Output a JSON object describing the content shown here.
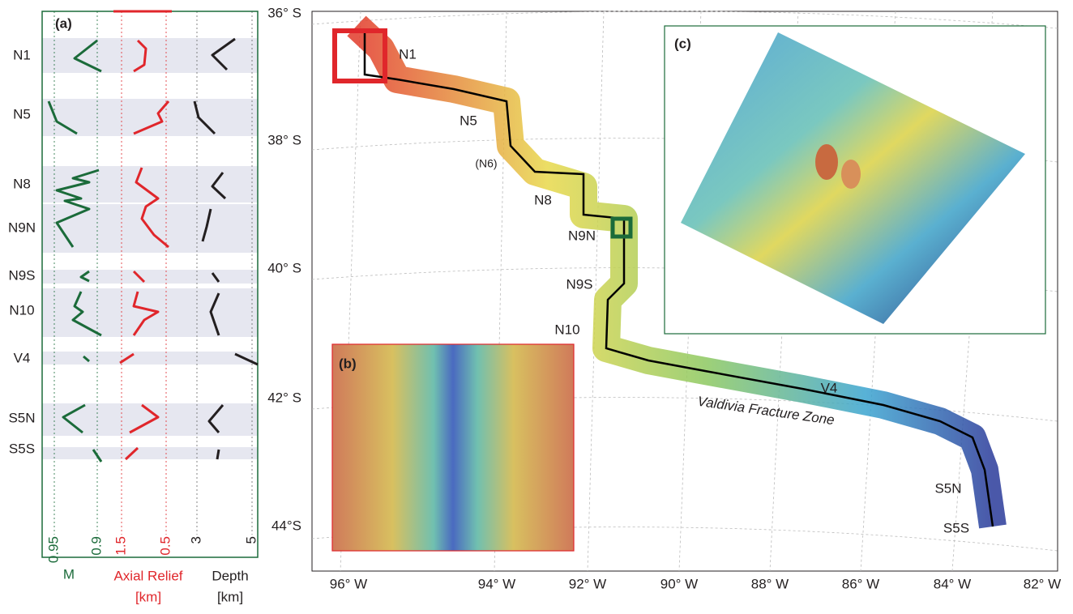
{
  "panel_a": {
    "label": "(a)",
    "segments": [
      "N1",
      "N5",
      "N8",
      "N9N",
      "N9S",
      "N10",
      "V4",
      "S5N",
      "S5S"
    ],
    "axes": [
      {
        "title": "M",
        "ticks": [
          "0.95",
          "0.9"
        ]
      },
      {
        "title": "Axial Relief",
        "unit": "[km]",
        "ticks": [
          "1.5",
          "0.5"
        ]
      },
      {
        "title": "Depth",
        "unit": "[km]",
        "ticks": [
          "3",
          "5"
        ]
      }
    ]
  },
  "map": {
    "latitudes": [
      "36° S",
      "38° S",
      "40° S",
      "42° S",
      "44°S"
    ],
    "longitudes": [
      "96° W",
      "94° W",
      "92° W",
      "90° W",
      "88° W",
      "86° W",
      "84° W",
      "82° W"
    ],
    "segment_labels": [
      "N1",
      "N5",
      "(N6)",
      "N8",
      "N9N",
      "N9S",
      "N10",
      "V4",
      "S5N",
      "S5S"
    ],
    "fracture_zone": "Valdivia Fracture Zone",
    "insets": [
      "(b)",
      "(c)"
    ]
  }
}
